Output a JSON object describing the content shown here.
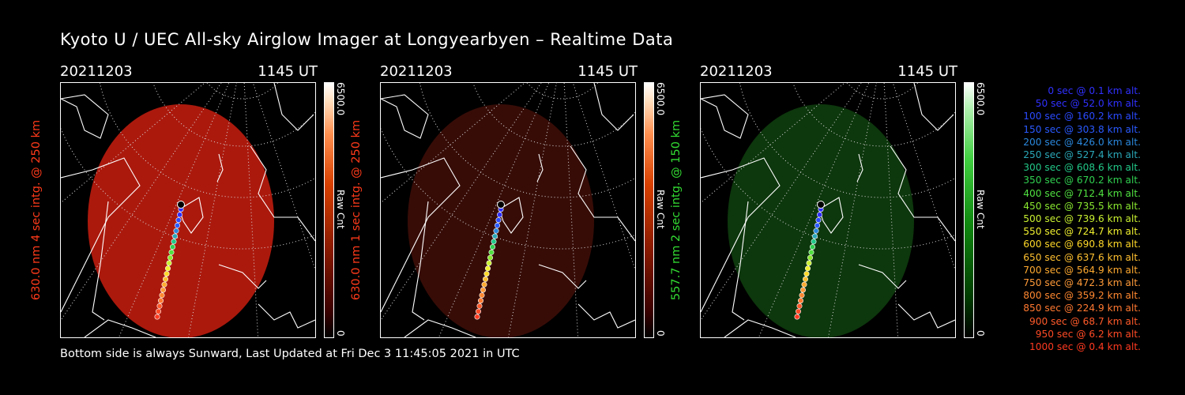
{
  "title": "Kyoto U / UEC All-sky Airglow Imager at Longyearbyen – Realtime Data",
  "footer": "Bottom side is always Sunward, Last Updated at Fri Dec  3 11:45:05 2021 in UTC",
  "colors": {
    "red_label": "#ff3a1a",
    "green_label": "#33dd33"
  },
  "panels": [
    {
      "date": "20211203",
      "time": "1145 UT",
      "ylabel": "630.0 nm 4 sec intg. @ 250 km",
      "colorbar_max": "6500.0",
      "colorbar_unit": "Raw Cnt",
      "colorbar_min": "0",
      "image_color": "#b41a0e",
      "image_opacity": 0.95,
      "label_color": "#ff3a1a"
    },
    {
      "date": "20211203",
      "time": "1145 UT",
      "ylabel": "630.0 nm 1 sec intg. @ 250 km",
      "colorbar_max": "6500.0",
      "colorbar_unit": "Raw Cnt",
      "colorbar_min": "0",
      "image_color": "#3a0d07",
      "image_opacity": 0.95,
      "label_color": "#ff3a1a"
    },
    {
      "date": "20211203",
      "time": "1145 UT",
      "ylabel": "557.7 nm 2 sec intg. @ 150 km",
      "colorbar_max": "6500.0",
      "colorbar_unit": "Raw Cnt",
      "colorbar_min": "0",
      "image_color": "#0e3a0e",
      "image_opacity": 0.95,
      "label_color": "#33dd33"
    }
  ],
  "legend": [
    {
      "text": "0 sec @    0.1 km alt.",
      "color": "#3030ff"
    },
    {
      "text": "50 sec @   52.0 km alt.",
      "color": "#3030ff"
    },
    {
      "text": "100 sec @  160.2 km alt.",
      "color": "#2a4aff"
    },
    {
      "text": "150 sec @  303.8 km alt.",
      "color": "#2a5aff"
    },
    {
      "text": "200 sec @  426.0 km alt.",
      "color": "#2a88dd"
    },
    {
      "text": "250 sec @  527.4 km alt.",
      "color": "#2aa8b8"
    },
    {
      "text": "300 sec @  608.6 km alt.",
      "color": "#22c888"
    },
    {
      "text": "350 sec @  670.2 km alt.",
      "color": "#30d050"
    },
    {
      "text": "400 sec @  712.4 km alt.",
      "color": "#50e040"
    },
    {
      "text": "450 sec @  735.5 km alt.",
      "color": "#8ae830"
    },
    {
      "text": "500 sec @  739.6 km alt.",
      "color": "#c8f030"
    },
    {
      "text": "550 sec @  724.7 km alt.",
      "color": "#f0f030"
    },
    {
      "text": "600 sec @  690.8 km alt.",
      "color": "#ffd828"
    },
    {
      "text": "650 sec @  637.6 km alt.",
      "color": "#ffc030"
    },
    {
      "text": "700 sec @  564.9 km alt.",
      "color": "#ffaa30"
    },
    {
      "text": "750 sec @  472.3 km alt.",
      "color": "#ff9a38"
    },
    {
      "text": "800 sec @  359.2 km alt.",
      "color": "#ff8830"
    },
    {
      "text": "850 sec @  224.9 km alt.",
      "color": "#ff7830"
    },
    {
      "text": "900 sec @   68.7 km alt.",
      "color": "#ff5a2a"
    },
    {
      "text": "950 sec @    6.2 km alt.",
      "color": "#ff4a25"
    },
    {
      "text": "1000 sec @    0.4 km alt.",
      "color": "#ff3a20"
    }
  ]
}
